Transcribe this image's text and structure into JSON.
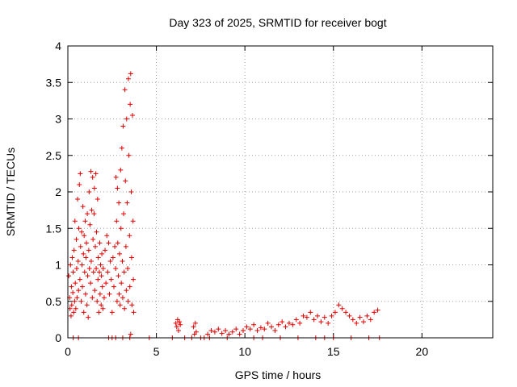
{
  "chart_data": {
    "type": "scatter",
    "title": "Day 323 of 2025, SRMTID for receiver bogt",
    "xlabel": "GPS time / hours",
    "ylabel": "SRMTID / TECUs",
    "xlim": [
      0,
      24
    ],
    "ylim": [
      0,
      4
    ],
    "xticks": [
      0,
      5,
      10,
      15,
      20
    ],
    "yticks": [
      0,
      0.5,
      1,
      1.5,
      2,
      2.5,
      3,
      3.5,
      4
    ],
    "xtick_labels": [
      "0",
      "5",
      "10",
      "15",
      "20"
    ],
    "ytick_labels": [
      "0",
      "0.5",
      "1",
      "1.5",
      "2",
      "2.5",
      "3",
      "3.5",
      "4"
    ],
    "grid": true,
    "marker": "+",
    "color": "#e00000",
    "series": [
      {
        "name": "SRMTID",
        "points": [
          [
            0.05,
            0.85
          ],
          [
            0.1,
            0.55
          ],
          [
            0.12,
            0.4
          ],
          [
            0.15,
            1.0
          ],
          [
            0.18,
            0.3
          ],
          [
            0.2,
            0.7
          ],
          [
            0.22,
            0.45
          ],
          [
            0.25,
            1.1
          ],
          [
            0.28,
            0.62
          ],
          [
            0.3,
            0.9
          ],
          [
            0.33,
            0.35
          ],
          [
            0.35,
            1.2
          ],
          [
            0.38,
            0.5
          ],
          [
            0.4,
            1.6
          ],
          [
            0.42,
            0.75
          ],
          [
            0.45,
            0.4
          ],
          [
            0.48,
            1.35
          ],
          [
            0.5,
            0.95
          ],
          [
            0.52,
            0.55
          ],
          [
            0.55,
            1.9
          ],
          [
            0.58,
            1.05
          ],
          [
            0.6,
            0.65
          ],
          [
            0.62,
            1.5
          ],
          [
            0.65,
            2.1
          ],
          [
            0.68,
            0.8
          ],
          [
            0.7,
            2.25
          ],
          [
            0.72,
            1.25
          ],
          [
            0.75,
            0.5
          ],
          [
            0.78,
            1.45
          ],
          [
            0.8,
            1.0
          ],
          [
            0.82,
            0.7
          ],
          [
            0.85,
            1.8
          ],
          [
            0.88,
            1.15
          ],
          [
            0.9,
            0.35
          ],
          [
            0.92,
            1.4
          ],
          [
            0.95,
            0.9
          ],
          [
            0.98,
            1.6
          ],
          [
            1.0,
            0.6
          ],
          [
            1.02,
            1.1
          ],
          [
            1.05,
            1.3
          ],
          [
            1.08,
            0.45
          ],
          [
            1.1,
            1.7
          ],
          [
            1.12,
            0.85
          ],
          [
            1.15,
            0.28
          ],
          [
            1.18,
            1.2
          ],
          [
            1.2,
            2.0
          ],
          [
            1.22,
            0.95
          ],
          [
            1.25,
            1.55
          ],
          [
            1.28,
            0.75
          ],
          [
            1.3,
            2.28
          ],
          [
            1.32,
            1.05
          ],
          [
            1.35,
            1.75
          ],
          [
            1.38,
            0.55
          ],
          [
            1.4,
            2.2
          ],
          [
            1.42,
            1.35
          ],
          [
            1.45,
            0.9
          ],
          [
            1.48,
            1.7
          ],
          [
            1.5,
            2.05
          ],
          [
            1.52,
            0.65
          ],
          [
            1.55,
            1.25
          ],
          [
            1.58,
            2.25
          ],
          [
            1.6,
            0.95
          ],
          [
            1.62,
            1.45
          ],
          [
            1.65,
            0.5
          ],
          [
            1.68,
            1.9
          ],
          [
            1.7,
            0.8
          ],
          [
            1.72,
            1.1
          ],
          [
            1.75,
            0.35
          ],
          [
            1.78,
            0.9
          ],
          [
            1.8,
            1.3
          ],
          [
            1.82,
            0.6
          ],
          [
            1.85,
            1.0
          ],
          [
            1.88,
            0.45
          ],
          [
            1.9,
            0.85
          ],
          [
            1.92,
            1.15
          ],
          [
            1.95,
            0.7
          ],
          [
            1.98,
            0.4
          ],
          [
            2.0,
            0.95
          ],
          [
            2.05,
            0.55
          ],
          [
            2.1,
            1.2
          ],
          [
            2.15,
            0.75
          ],
          [
            2.2,
            1.4
          ],
          [
            2.25,
            0.9
          ],
          [
            2.3,
            1.3
          ],
          [
            2.35,
            0.6
          ],
          [
            2.4,
            1.05
          ],
          [
            2.45,
            0.8
          ],
          [
            2.5,
            0.35
          ],
          [
            2.55,
            1.1
          ],
          [
            2.6,
            0.7
          ],
          [
            2.65,
            1.25
          ],
          [
            2.7,
            0.95
          ],
          [
            2.72,
            2.2
          ],
          [
            2.75,
            1.6
          ],
          [
            2.78,
            0.5
          ],
          [
            2.8,
            2.05
          ],
          [
            2.82,
            1.3
          ],
          [
            2.85,
            0.85
          ],
          [
            2.88,
            1.85
          ],
          [
            2.9,
            0.6
          ],
          [
            2.92,
            1.15
          ],
          [
            2.95,
            0.45
          ],
          [
            2.98,
            2.3
          ],
          [
            3.0,
            1.5
          ],
          [
            3.02,
            0.75
          ],
          [
            3.05,
            2.6
          ],
          [
            3.08,
            1.05
          ],
          [
            3.1,
            0.55
          ],
          [
            3.12,
            2.9
          ],
          [
            3.15,
            1.7
          ],
          [
            3.18,
            0.9
          ],
          [
            3.2,
            0.4
          ],
          [
            3.22,
            3.4
          ],
          [
            3.25,
            2.15
          ],
          [
            3.28,
            1.25
          ],
          [
            3.3,
            0.65
          ],
          [
            3.32,
            3.0
          ],
          [
            3.35,
            1.85
          ],
          [
            3.38,
            0.95
          ],
          [
            3.4,
            0.5
          ],
          [
            3.42,
            3.55
          ],
          [
            3.45,
            2.5
          ],
          [
            3.48,
            1.4
          ],
          [
            3.5,
            0.7
          ],
          [
            3.52,
            3.2
          ],
          [
            3.55,
            3.62
          ],
          [
            3.58,
            2.0
          ],
          [
            3.6,
            1.1
          ],
          [
            3.62,
            0.45
          ],
          [
            3.65,
            3.05
          ],
          [
            3.68,
            1.6
          ],
          [
            3.7,
            0.8
          ],
          [
            3.72,
            0.35
          ],
          [
            3.55,
            0.05
          ],
          [
            0.3,
            0.0
          ],
          [
            0.6,
            0.0
          ],
          [
            2.3,
            0.0
          ],
          [
            2.5,
            0.0
          ],
          [
            2.7,
            0.0
          ],
          [
            3.1,
            0.0
          ],
          [
            3.5,
            0.0
          ],
          [
            4.6,
            0.0
          ],
          [
            5.9,
            0.0
          ],
          [
            6.1,
            0.2
          ],
          [
            6.15,
            0.15
          ],
          [
            6.2,
            0.25
          ],
          [
            6.25,
            0.1
          ],
          [
            6.3,
            0.22
          ],
          [
            6.35,
            0.18
          ],
          [
            6.6,
            0.0
          ],
          [
            7.0,
            0.0
          ],
          [
            7.1,
            0.15
          ],
          [
            7.15,
            0.05
          ],
          [
            7.2,
            0.2
          ],
          [
            7.25,
            0.08
          ],
          [
            7.5,
            0.0
          ],
          [
            7.7,
            0.0
          ],
          [
            7.9,
            0.05
          ],
          [
            8.1,
            0.1
          ],
          [
            8.3,
            0.08
          ],
          [
            8.5,
            0.12
          ],
          [
            8.7,
            0.06
          ],
          [
            8.9,
            0.1
          ],
          [
            9.1,
            0.05
          ],
          [
            9.3,
            0.08
          ],
          [
            9.5,
            0.12
          ],
          [
            9.7,
            0.05
          ],
          [
            9.9,
            0.1
          ],
          [
            10.1,
            0.15
          ],
          [
            10.3,
            0.12
          ],
          [
            10.5,
            0.18
          ],
          [
            10.7,
            0.1
          ],
          [
            10.9,
            0.14
          ],
          [
            11.1,
            0.12
          ],
          [
            11.3,
            0.2
          ],
          [
            11.5,
            0.15
          ],
          [
            11.7,
            0.1
          ],
          [
            11.9,
            0.18
          ],
          [
            12.1,
            0.22
          ],
          [
            12.3,
            0.15
          ],
          [
            12.5,
            0.2
          ],
          [
            12.7,
            0.18
          ],
          [
            12.9,
            0.25
          ],
          [
            13.1,
            0.2
          ],
          [
            13.3,
            0.3
          ],
          [
            13.5,
            0.28
          ],
          [
            13.7,
            0.35
          ],
          [
            13.9,
            0.25
          ],
          [
            14.1,
            0.3
          ],
          [
            14.3,
            0.22
          ],
          [
            14.5,
            0.28
          ],
          [
            14.7,
            0.2
          ],
          [
            14.9,
            0.3
          ],
          [
            15.1,
            0.35
          ],
          [
            15.3,
            0.45
          ],
          [
            15.5,
            0.4
          ],
          [
            15.7,
            0.35
          ],
          [
            15.9,
            0.3
          ],
          [
            16.1,
            0.25
          ],
          [
            16.3,
            0.2
          ],
          [
            16.5,
            0.28
          ],
          [
            16.7,
            0.22
          ],
          [
            16.9,
            0.3
          ],
          [
            17.1,
            0.25
          ],
          [
            17.3,
            0.35
          ],
          [
            17.5,
            0.38
          ],
          [
            8.0,
            0.0
          ],
          [
            9.0,
            0.0
          ],
          [
            10.5,
            0.0
          ],
          [
            11.0,
            0.0
          ],
          [
            12.0,
            0.0
          ],
          [
            13.0,
            0.0
          ],
          [
            14.0,
            0.0
          ],
          [
            14.5,
            0.0
          ],
          [
            15.0,
            0.0
          ],
          [
            16.0,
            0.0
          ],
          [
            17.0,
            0.0
          ],
          [
            17.6,
            0.0
          ]
        ]
      }
    ]
  }
}
